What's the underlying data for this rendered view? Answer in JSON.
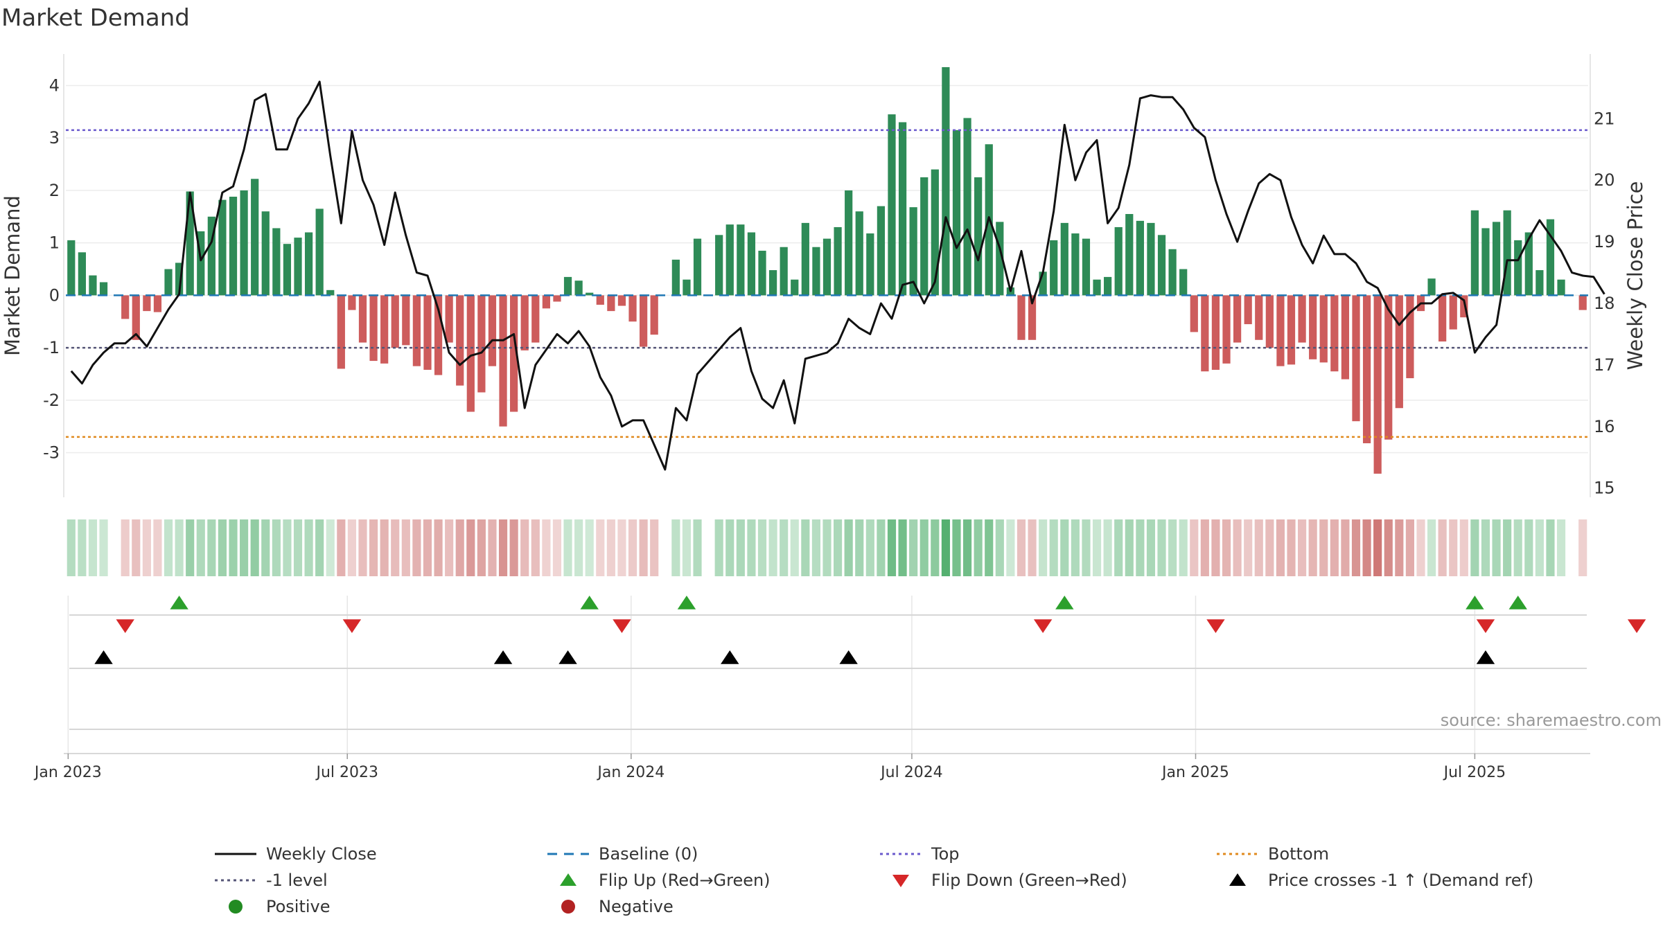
{
  "title": "Market Demand",
  "source": "source: sharemaestro.com",
  "colors": {
    "positive": "#2e8b57",
    "negative": "#cd5c5c",
    "price": "#111111",
    "baseline": "#1f77b4",
    "top": "#6a5acd",
    "minus1": "#555577",
    "bottom": "#e08a1e",
    "flip_up": "#2ca02c",
    "flip_down": "#d62728",
    "cross": "#000000",
    "dot_pos": "#228b22",
    "dot_neg": "#b22222"
  },
  "chart_data": {
    "type": "bar+line",
    "title": "Market Demand",
    "ylabel": "Market Demand",
    "y2label": "Weekly Close Price",
    "ylim": [
      -3.85,
      4.6
    ],
    "y2lim": [
      14.85,
      22.05
    ],
    "yticks": [
      4,
      3,
      2,
      1,
      0,
      -1,
      -2,
      -3
    ],
    "y2ticks": [
      21,
      20,
      19,
      18,
      17,
      16,
      15
    ],
    "x_start": "2023-01-03",
    "x_step_days": 7,
    "xticks": [
      "Jan 2023",
      "Jul 2023",
      "Jan 2024",
      "Jul 2024",
      "Jan 2025",
      "Jul 2025"
    ],
    "xtick_dates": [
      "2023-01-01",
      "2023-07-01",
      "2024-01-01",
      "2024-07-01",
      "2025-01-01",
      "2025-07-01"
    ],
    "reference_lines": {
      "baseline": 0,
      "top": 3.15,
      "minus1": -1,
      "bottom": -2.7
    },
    "demand": [
      1.05,
      0.82,
      0.38,
      0.25,
      0,
      -0.45,
      -0.85,
      -0.3,
      -0.32,
      0.5,
      0.62,
      1.98,
      1.22,
      1.5,
      1.82,
      1.88,
      2.0,
      2.22,
      1.6,
      1.28,
      0.98,
      1.1,
      1.2,
      1.65,
      0.1,
      -1.4,
      -0.28,
      -0.9,
      -1.25,
      -1.3,
      -1.0,
      -0.95,
      -1.35,
      -1.42,
      -1.52,
      -0.9,
      -1.72,
      -2.22,
      -1.85,
      -1.35,
      -2.5,
      -2.22,
      -1.05,
      -0.9,
      -0.25,
      -0.12,
      0.35,
      0.28,
      0.05,
      -0.18,
      -0.3,
      -0.2,
      -0.5,
      -0.98,
      -0.75,
      0,
      0.68,
      0.3,
      1.08,
      0,
      1.15,
      1.35,
      1.35,
      1.2,
      0.85,
      0.48,
      0.92,
      0.3,
      1.38,
      0.92,
      1.08,
      1.3,
      2.0,
      1.6,
      1.18,
      1.7,
      3.45,
      3.3,
      1.68,
      2.25,
      2.4,
      4.35,
      3.15,
      3.38,
      2.25,
      2.88,
      1.4,
      0.15,
      -0.85,
      -0.85,
      0.45,
      1.05,
      1.38,
      1.18,
      1.08,
      0.3,
      0.35,
      1.3,
      1.55,
      1.42,
      1.38,
      1.15,
      0.88,
      0.5,
      -0.7,
      -1.45,
      -1.42,
      -1.3,
      -0.9,
      -0.55,
      -0.85,
      -1.0,
      -1.35,
      -1.32,
      -0.9,
      -1.22,
      -1.28,
      -1.45,
      -1.6,
      -2.4,
      -2.82,
      -3.4,
      -2.75,
      -2.15,
      -1.58,
      -0.3,
      0.32,
      -0.88,
      -0.65,
      -0.42,
      1.62,
      1.28,
      1.4,
      1.62,
      1.05,
      1.2,
      0.48,
      1.45,
      0.3,
      0,
      -0.28
    ],
    "price": [
      16.9,
      16.7,
      17.0,
      17.2,
      17.35,
      17.35,
      17.5,
      17.3,
      17.6,
      17.9,
      18.15,
      19.8,
      18.7,
      19.0,
      19.8,
      19.9,
      20.5,
      21.3,
      21.4,
      20.5,
      20.5,
      21.0,
      21.25,
      21.6,
      20.4,
      19.3,
      20.8,
      20.0,
      19.6,
      18.95,
      19.8,
      19.1,
      18.5,
      18.45,
      17.9,
      17.2,
      17.0,
      17.15,
      17.2,
      17.4,
      17.4,
      17.5,
      16.3,
      17.0,
      17.25,
      17.5,
      17.35,
      17.55,
      17.3,
      16.8,
      16.5,
      16.0,
      16.1,
      16.1,
      15.7,
      15.3,
      16.3,
      16.1,
      16.85,
      17.05,
      17.25,
      17.45,
      17.6,
      16.9,
      16.45,
      16.3,
      16.75,
      16.05,
      17.1,
      17.15,
      17.2,
      17.35,
      17.75,
      17.6,
      17.5,
      18.0,
      17.75,
      18.3,
      18.35,
      18.0,
      18.35,
      19.4,
      18.9,
      19.2,
      18.7,
      19.4,
      18.9,
      18.2,
      18.85,
      18.0,
      18.5,
      19.5,
      20.9,
      20.0,
      20.45,
      20.65,
      19.3,
      19.55,
      20.25,
      21.33,
      21.38,
      21.35,
      21.35,
      21.15,
      20.85,
      20.7,
      20.0,
      19.45,
      19.0,
      19.5,
      19.95,
      20.1,
      20.0,
      19.4,
      18.95,
      18.65,
      19.1,
      18.8,
      18.8,
      18.65,
      18.35,
      18.25,
      17.9,
      17.65,
      17.85,
      18.0,
      18.0,
      18.15,
      18.17,
      18.05,
      17.2,
      17.45,
      17.65,
      18.7,
      18.7,
      19.05,
      19.35,
      19.1,
      18.85,
      18.5,
      18.45,
      18.43,
      18.15
    ],
    "flip_up_weeks": [
      10,
      48,
      57,
      92,
      130,
      134
    ],
    "flip_down_weeks": [
      5,
      26,
      51,
      90,
      106,
      131,
      145
    ],
    "price_cross_weeks": [
      3,
      40,
      46,
      61,
      72,
      131
    ]
  },
  "legend": [
    {
      "key": "weekly_close",
      "label": "Weekly Close",
      "symbol": "solid-line",
      "color": "#111111"
    },
    {
      "key": "baseline",
      "label": "Baseline (0)",
      "symbol": "dashed-line",
      "color": "#1f77b4"
    },
    {
      "key": "top",
      "label": "Top",
      "symbol": "dotted-line",
      "color": "#6a5acd"
    },
    {
      "key": "bottom",
      "label": "Bottom",
      "symbol": "dotted-line",
      "color": "#e08a1e"
    },
    {
      "key": "minus1",
      "label": "-1 level",
      "symbol": "dotted-line",
      "color": "#555577"
    },
    {
      "key": "flip_up",
      "label": "Flip Up (Red→Green)",
      "symbol": "triangle-up",
      "color": "#2ca02c"
    },
    {
      "key": "flip_down",
      "label": "Flip Down (Green→Red)",
      "symbol": "triangle-down",
      "color": "#d62728"
    },
    {
      "key": "price_cross",
      "label": "Price crosses -1 ↑ (Demand ref)",
      "symbol": "triangle-up",
      "color": "#000000"
    },
    {
      "key": "positive",
      "label": "Positive",
      "symbol": "dot",
      "color": "#228b22"
    },
    {
      "key": "negative",
      "label": "Negative",
      "symbol": "dot",
      "color": "#b22222"
    }
  ]
}
